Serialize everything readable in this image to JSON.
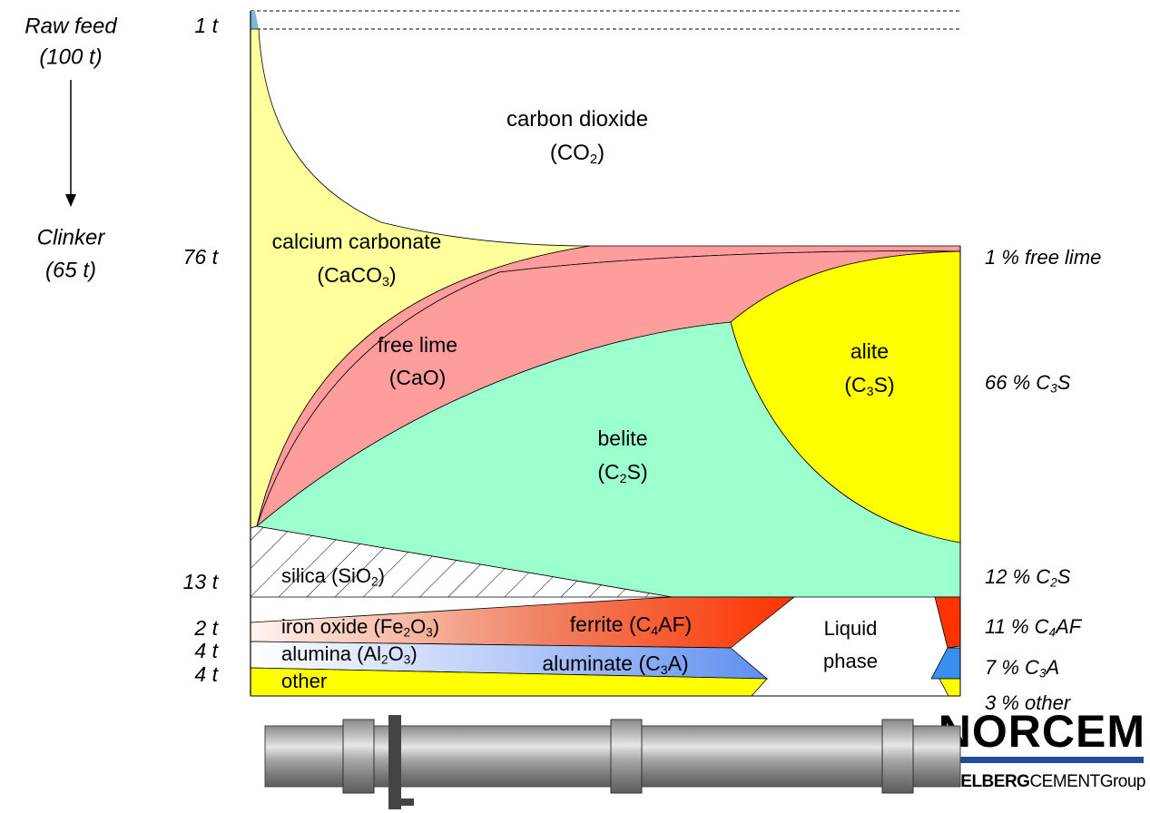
{
  "left": {
    "raw_feed": "Raw feed",
    "raw_mass": "(100 t)",
    "clinker": "Clinker",
    "clinker_mass": "(65 t)"
  },
  "mass_labels": [
    "1 t",
    "76 t",
    "13 t",
    "2 t",
    "4 t",
    "4 t"
  ],
  "regions": [
    {
      "lines": [
        [
          "carbon dioxide"
        ],
        [
          "(CO",
          "2",
          ")"
        ]
      ]
    },
    {
      "lines": [
        [
          "calcium carbonate"
        ],
        [
          "(CaCO",
          "3",
          ")"
        ]
      ]
    },
    {
      "lines": [
        [
          "free lime"
        ],
        [
          "(CaO)"
        ]
      ]
    },
    {
      "lines": [
        [
          "belite"
        ],
        [
          "(C",
          "2",
          "S)"
        ]
      ]
    },
    {
      "lines": [
        [
          "alite"
        ],
        [
          "(C",
          "3",
          "S)"
        ]
      ]
    },
    {
      "lines": [
        [
          "silica (SiO",
          "2",
          ")"
        ]
      ]
    },
    {
      "lines": [
        [
          "iron oxide (Fe",
          "2",
          "O",
          "3",
          ")"
        ]
      ]
    },
    {
      "lines": [
        [
          "alumina (Al",
          "2",
          "O",
          "3",
          ")"
        ]
      ]
    },
    {
      "lines": [
        [
          "other"
        ]
      ]
    },
    {
      "lines": [
        [
          "ferrite (C",
          "4",
          "AF)"
        ]
      ]
    },
    {
      "lines": [
        [
          "aluminate (C",
          "3",
          "A)"
        ]
      ]
    },
    {
      "lines": [
        [
          "Liquid"
        ],
        [
          "phase"
        ]
      ]
    }
  ],
  "result_labels": [
    [
      "1 % free lime"
    ],
    [
      "66 %  C",
      "3",
      "S"
    ],
    [
      "12 %  C",
      "2",
      "S"
    ],
    [
      "11 %  C",
      "4",
      "AF"
    ],
    [
      "7 %  C",
      "3",
      "A"
    ],
    [
      "3 %  other"
    ]
  ],
  "logo": {
    "name": "NORCEM",
    "group": [
      "HEIDELBERG",
      "CEMENT",
      "Group"
    ]
  }
}
